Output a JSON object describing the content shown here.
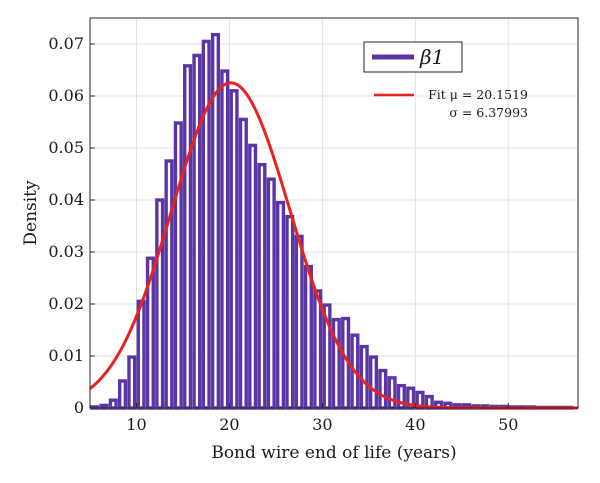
{
  "chart_data": {
    "type": "bar",
    "title": "",
    "xlabel": "Bond wire end of life (years)",
    "ylabel": "Density",
    "xlim": [
      5,
      57.5
    ],
    "ylim": [
      0,
      0.075
    ],
    "grid": true,
    "legend_position": "top-right",
    "bin_width": 1,
    "bar_color": "#5b35a5",
    "fit_color": "#e8231f",
    "x_ticks": [
      10,
      20,
      30,
      40,
      50
    ],
    "y_ticks": [
      0,
      0.01,
      0.02,
      0.03,
      0.04,
      0.05,
      0.06,
      0.07
    ],
    "x_tick_labels": [
      "10",
      "20",
      "30",
      "40",
      "50"
    ],
    "y_tick_labels": [
      "0",
      "0.01",
      "0.02",
      "0.03",
      "0.04",
      "0.05",
      "0.06",
      "0.07"
    ],
    "bins": [
      {
        "x": 5.5,
        "y": 0.0002
      },
      {
        "x": 6.5,
        "y": 0.0005
      },
      {
        "x": 7.5,
        "y": 0.0015
      },
      {
        "x": 8.5,
        "y": 0.0052
      },
      {
        "x": 9.5,
        "y": 0.0098
      },
      {
        "x": 10.5,
        "y": 0.0205
      },
      {
        "x": 11.5,
        "y": 0.0288
      },
      {
        "x": 12.5,
        "y": 0.04
      },
      {
        "x": 13.5,
        "y": 0.0475
      },
      {
        "x": 14.5,
        "y": 0.0548
      },
      {
        "x": 15.5,
        "y": 0.0658
      },
      {
        "x": 16.5,
        "y": 0.0678
      },
      {
        "x": 17.5,
        "y": 0.0705
      },
      {
        "x": 18.5,
        "y": 0.0718
      },
      {
        "x": 19.5,
        "y": 0.0648
      },
      {
        "x": 20.5,
        "y": 0.061
      },
      {
        "x": 21.5,
        "y": 0.0555
      },
      {
        "x": 22.5,
        "y": 0.0505
      },
      {
        "x": 23.5,
        "y": 0.0468
      },
      {
        "x": 24.5,
        "y": 0.044
      },
      {
        "x": 25.5,
        "y": 0.0395
      },
      {
        "x": 26.5,
        "y": 0.0368
      },
      {
        "x": 27.5,
        "y": 0.033
      },
      {
        "x": 28.5,
        "y": 0.0272
      },
      {
        "x": 29.5,
        "y": 0.0225
      },
      {
        "x": 30.5,
        "y": 0.0198
      },
      {
        "x": 31.5,
        "y": 0.017
      },
      {
        "x": 32.5,
        "y": 0.0172
      },
      {
        "x": 33.5,
        "y": 0.014
      },
      {
        "x": 34.5,
        "y": 0.0118
      },
      {
        "x": 35.5,
        "y": 0.0098
      },
      {
        "x": 36.5,
        "y": 0.0072
      },
      {
        "x": 37.5,
        "y": 0.0058
      },
      {
        "x": 38.5,
        "y": 0.0043
      },
      {
        "x": 39.5,
        "y": 0.0038
      },
      {
        "x": 40.5,
        "y": 0.003
      },
      {
        "x": 41.5,
        "y": 0.0022
      },
      {
        "x": 42.5,
        "y": 0.0011
      },
      {
        "x": 43.5,
        "y": 0.0009
      },
      {
        "x": 44.5,
        "y": 0.0006
      },
      {
        "x": 45.5,
        "y": 0.0006
      },
      {
        "x": 46.5,
        "y": 0.0004
      },
      {
        "x": 47.5,
        "y": 0.0004
      },
      {
        "x": 48.5,
        "y": 0.0003
      },
      {
        "x": 49.5,
        "y": 0.0003
      },
      {
        "x": 50.5,
        "y": 0.0002
      },
      {
        "x": 51.5,
        "y": 0.0002
      },
      {
        "x": 52.5,
        "y": 0.0002
      },
      {
        "x": 53.5,
        "y": 0.0001
      },
      {
        "x": 54.5,
        "y": 0.0001
      },
      {
        "x": 55.5,
        "y": 0.0001
      },
      {
        "x": 56.5,
        "y": 0.0001
      }
    ],
    "fit": {
      "distribution": "normal",
      "mu": 20.1519,
      "sigma": 6.37993
    },
    "legend": {
      "series_label": "β1",
      "fit_label_line1": "Fit μ = 20.1519",
      "fit_label_line2": "σ = 6.37993"
    }
  }
}
